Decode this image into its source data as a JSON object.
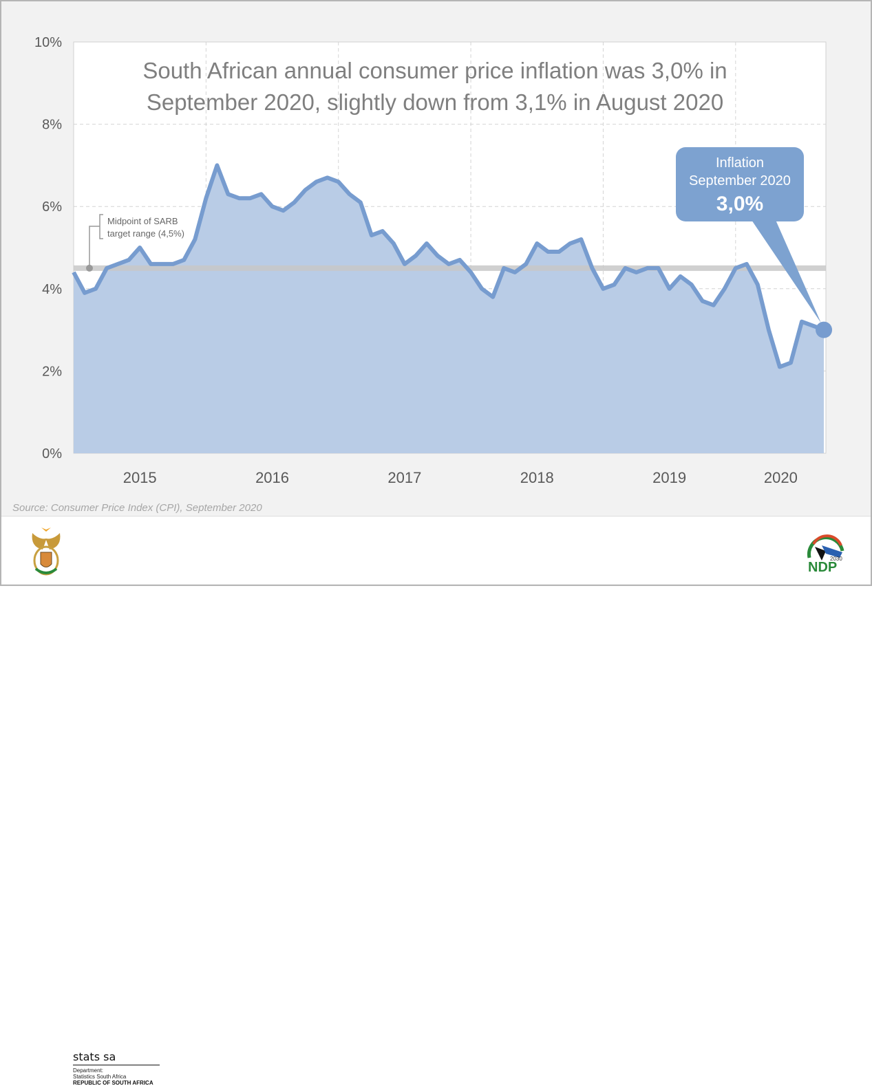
{
  "chart_data": {
    "type": "area",
    "title": "South African annual consumer price inflation was 3,0% in September 2020, slightly down from 3,1% in August 2020",
    "title_lines": [
      "South African annual consumer price inflation was 3,0% in",
      "September 2020, slightly down from 3,1% in August 2020"
    ],
    "xlabel": "",
    "ylabel": "",
    "ylim": [
      0,
      10
    ],
    "y_ticks": [
      "0%",
      "2%",
      "4%",
      "6%",
      "8%",
      "10%"
    ],
    "x_tick_labels": [
      "2015",
      "2016",
      "2017",
      "2018",
      "2019",
      "2020"
    ],
    "start": "2015-01",
    "values": [
      4.4,
      3.9,
      4.0,
      4.5,
      4.6,
      4.7,
      5.0,
      4.6,
      4.6,
      4.6,
      4.7,
      5.2,
      6.2,
      7.0,
      6.3,
      6.2,
      6.2,
      6.3,
      6.0,
      5.9,
      6.1,
      6.4,
      6.6,
      6.7,
      6.6,
      6.3,
      6.1,
      5.3,
      5.4,
      5.1,
      4.6,
      4.8,
      5.1,
      4.8,
      4.6,
      4.7,
      4.4,
      4.0,
      3.8,
      4.5,
      4.4,
      4.6,
      5.1,
      4.9,
      4.9,
      5.1,
      5.2,
      4.5,
      4.0,
      4.1,
      4.5,
      4.4,
      4.5,
      4.5,
      4.0,
      4.3,
      4.1,
      3.7,
      3.6,
      4.0,
      4.5,
      4.6,
      4.1,
      3.0,
      2.1,
      2.2,
      3.2,
      3.1,
      3.0
    ],
    "reference_line": {
      "value": 4.5,
      "label_lines": [
        "Midpoint of SARB",
        "target range (4,5%)"
      ]
    },
    "callout": {
      "lines": [
        "Inflation",
        "September 2020"
      ],
      "value": "3,0%"
    },
    "grid": true,
    "colors": {
      "line": "#779ccf",
      "fill": "#b9cce6",
      "reference": "#c8c8c8",
      "callout": "#7da2d0"
    }
  },
  "source": "Source: Consumer Price Index (CPI), September 2020",
  "footer": {
    "org_name": "stats sa",
    "dept_label": "Department:",
    "dept_name": "Statistics South Africa",
    "country": "REPUBLIC OF SOUTH AFRICA",
    "ndp_logo": {
      "year": "2030",
      "text": "NDP"
    }
  }
}
